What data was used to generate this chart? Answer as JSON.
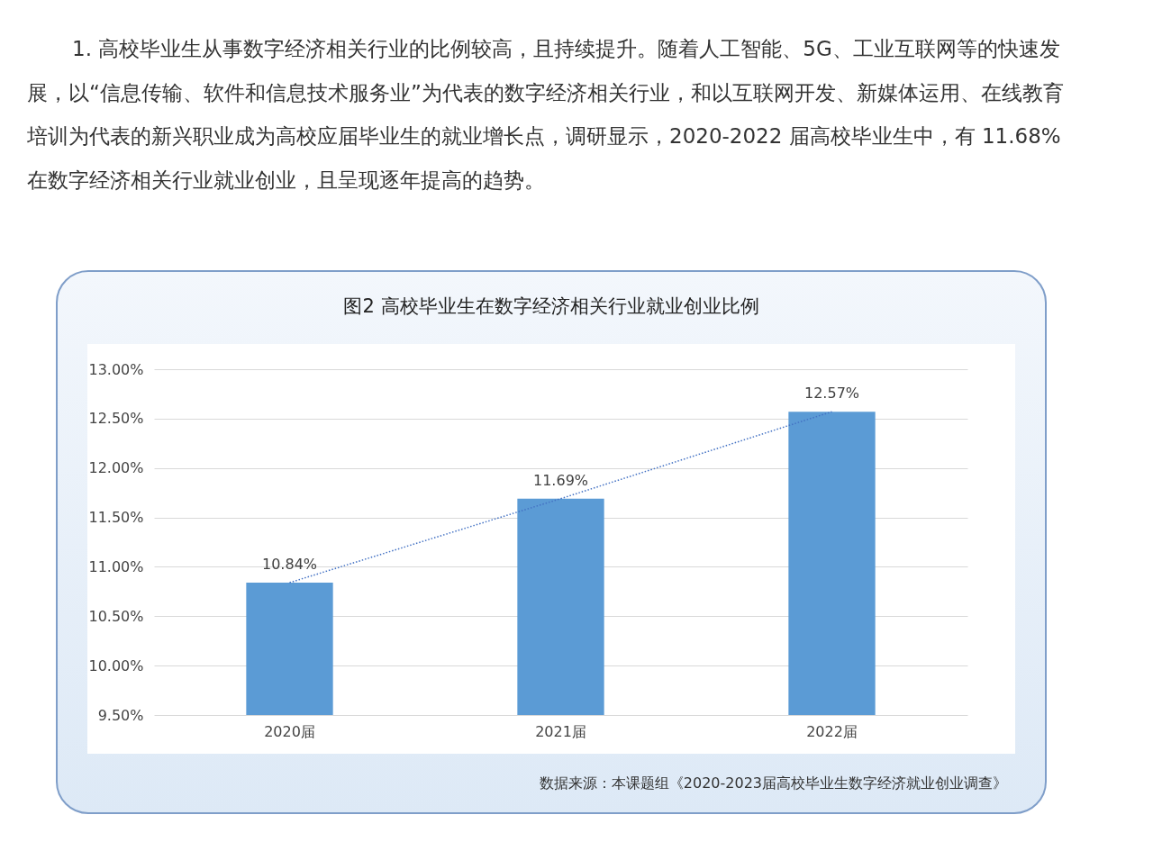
{
  "chart_data": {
    "type": "bar",
    "title": "图2  高校毕业生在数字经济相关行业就业创业比例",
    "categories": [
      "2020届",
      "2021届",
      "2022届"
    ],
    "series": [
      {
        "color": "#5b9bd5",
        "values": [
          10.84,
          11.69,
          12.57
        ],
        "value_labels": [
          "10.84%",
          "11.69%",
          "12.57%"
        ]
      },
      {
        "type": "line",
        "color": "#4472c4",
        "line_style": "dotted",
        "marker": "none",
        "values": [
          10.84,
          11.69,
          12.57
        ]
      }
    ],
    "ylim": [
      9.5,
      13
    ],
    "yticks": [
      {
        "value": 9.5,
        "label": "9.50%"
      },
      {
        "value": 10,
        "label": "10.00%"
      },
      {
        "value": 10.5,
        "label": "10.50%"
      },
      {
        "value": 11,
        "label": "11.00%"
      },
      {
        "value": 11.5,
        "label": "11.50%"
      },
      {
        "value": 12,
        "label": "12.00%"
      },
      {
        "value": 12.5,
        "label": "12.50%"
      },
      {
        "value": 13,
        "label": "13.00%"
      }
    ],
    "grid": "y",
    "annotations": [
      "1. 高校毕业生从事数字经济相关行业的比例较高，且持续提升。随着人工智能、5G、工业互联网等的快速发展，以“信息传输、软件和信息技术服务业”为代表的数字经济相关行业，和以互联网开发、新媒体运用、在线教育培训为代表的新兴职业成为高校应届毕业生的就业增长点，调研显示，2020-2022 届高校毕业生中，有 11.68% 在数字经济相关行业就业创业，且呈现逐年提高的趋势。",
      "数据来源：本课题组《2020-2023届高校毕业生数字经济就业创业调查》"
    ]
  }
}
